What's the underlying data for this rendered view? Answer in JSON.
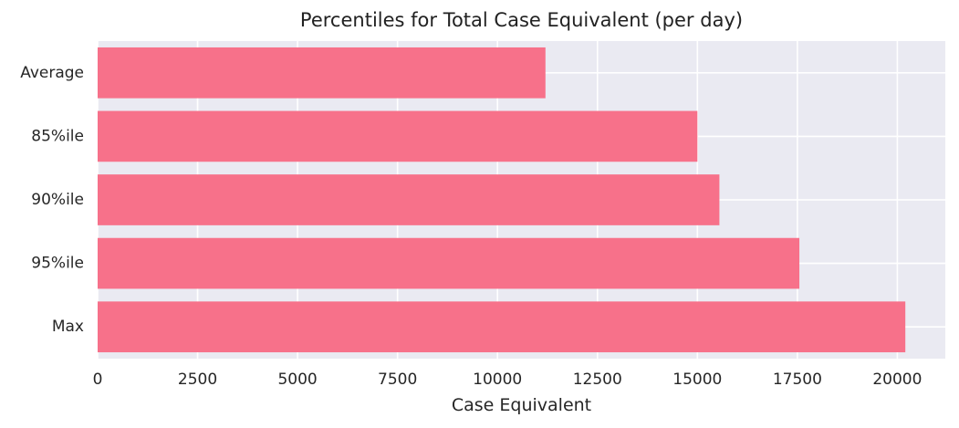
{
  "chart_data": {
    "type": "bar",
    "orientation": "horizontal",
    "title": "Percentiles for Total Case Equivalent (per day)",
    "xlabel": "Case Equivalent",
    "ylabel": "",
    "categories": [
      "Average",
      "85%ile",
      "90%ile",
      "95%ile",
      "Max"
    ],
    "values": [
      11200,
      15000,
      15550,
      17550,
      20200
    ],
    "xlim": [
      0,
      21200
    ],
    "xticks": [
      0,
      2500,
      5000,
      7500,
      10000,
      12500,
      15000,
      17500,
      20000
    ],
    "xtick_labels": [
      "0",
      "2500",
      "5000",
      "7500",
      "10000",
      "12500",
      "15000",
      "17500",
      "20000"
    ],
    "bar_color": "#f7718a",
    "background_color": "#eaeaf2",
    "grid": true,
    "legend": false
  }
}
